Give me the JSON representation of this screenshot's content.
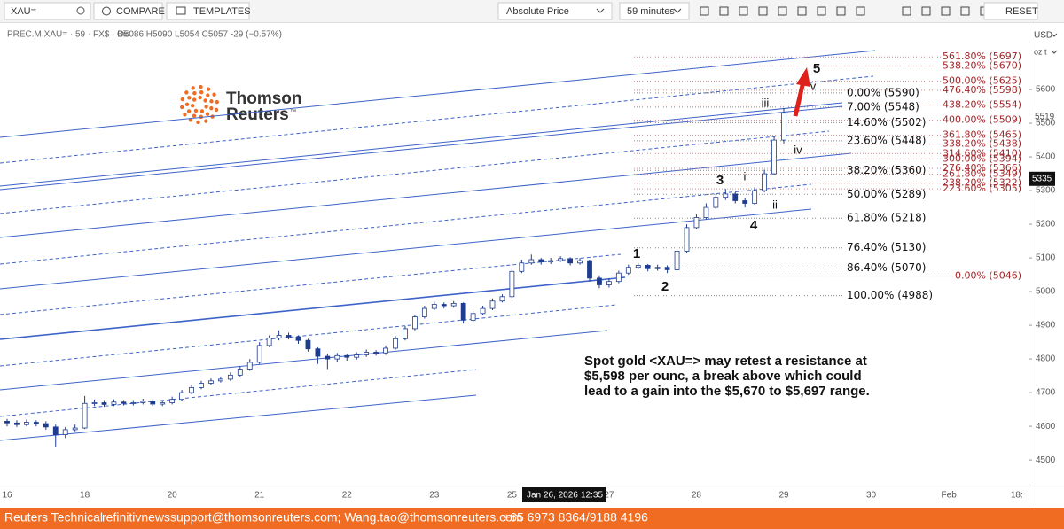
{
  "toolbar": {
    "symbol": "XAU=",
    "compare": "COMPARE",
    "templates": "TEMPLATES",
    "price_mode": "Absolute Price",
    "interval": "59 minutes",
    "reset": "RESET"
  },
  "legend": {
    "instrument": "PREC.M.XAU= · 59 · FX$ · Bid",
    "ohlc": "O5086 H5090 L5054 C5057 -29 (−0.57%)"
  },
  "logo": {
    "line1": "Thomson",
    "line2": "Reuters",
    "mark": "™"
  },
  "axis_units": {
    "currency": "USD",
    "unit": "oz t"
  },
  "footer": {
    "team": "Reuters Technical",
    "emails": "refinitivnewssupport@thomsonreuters.com; Wang.tao@thomsonreuters.com",
    "phone": "+65 6973 8364/9188 4196"
  },
  "chart_data": {
    "type": "candlestick",
    "categories": [
      "16",
      null,
      null,
      null,
      null,
      null,
      null,
      null,
      "18",
      null,
      null,
      null,
      null,
      null,
      null,
      null,
      null,
      "20",
      null,
      null,
      null,
      null,
      null,
      null,
      null,
      null,
      "21",
      null,
      null,
      null,
      null,
      null,
      null,
      null,
      null,
      "22",
      null,
      null,
      null,
      null,
      null,
      null,
      null,
      null,
      "23",
      null,
      null,
      null,
      null,
      null,
      null,
      null,
      "25",
      null,
      null,
      null,
      null,
      null,
      null,
      null,
      null,
      null,
      "27",
      null,
      null,
      null,
      null,
      null,
      null,
      null,
      null,
      "28",
      null,
      null,
      null,
      null,
      null,
      null,
      null,
      null,
      "29",
      null,
      null,
      null,
      null,
      null,
      null,
      null,
      null,
      "30",
      null,
      null,
      null,
      null,
      null,
      null,
      null,
      "Feb",
      null,
      null,
      null,
      null,
      null,
      null,
      "18:"
    ],
    "open": [
      4615,
      4610,
      4605,
      4612,
      4608,
      4598,
      4575,
      4590,
      4595,
      4668,
      4670,
      4665,
      4672,
      4668,
      4670,
      4674,
      4666,
      4670,
      4680,
      4700,
      4715,
      4728,
      4735,
      4740,
      4752,
      4770,
      4790,
      4840,
      4862,
      4870,
      4865,
      4855,
      4830,
      4808,
      4800,
      4810,
      4805,
      4812,
      4820,
      4818,
      4832,
      4860,
      4890,
      4925,
      4950,
      4962,
      4958,
      4965,
      4915,
      4935,
      4950,
      4972,
      4985,
      5060,
      5085,
      5095,
      5088,
      5092,
      5098,
      5085,
      5092,
      5040,
      5020,
      5030,
      5055,
      5072,
      5078,
      5068,
      5072,
      5065,
      5120,
      5190,
      5220,
      5250,
      5280,
      5290,
      5270,
      5262,
      5300,
      5350,
      5450,
      null,
      null,
      null,
      null,
      null,
      null,
      null,
      null,
      null,
      null,
      null,
      null,
      null,
      null,
      null,
      null,
      null,
      null,
      null,
      null,
      null,
      null,
      null,
      null
    ],
    "high": [
      4622,
      4618,
      4620,
      4618,
      4615,
      4605,
      4598,
      4605,
      4690,
      4680,
      4678,
      4680,
      4678,
      4678,
      4682,
      4680,
      4676,
      4688,
      4708,
      4722,
      4735,
      4742,
      4748,
      4760,
      4778,
      4800,
      4850,
      4870,
      4885,
      4878,
      4870,
      4860,
      4835,
      4815,
      4818,
      4815,
      4820,
      4828,
      4826,
      4840,
      4868,
      4898,
      4932,
      4958,
      4970,
      4968,
      4972,
      4968,
      4942,
      4958,
      4980,
      4992,
      5070,
      5095,
      5110,
      5100,
      5100,
      5105,
      5102,
      5100,
      5095,
      5048,
      5040,
      5062,
      5080,
      5085,
      5082,
      5080,
      5078,
      5128,
      5200,
      5232,
      5262,
      5292,
      5305,
      5295,
      5278,
      5310,
      5362,
      5462,
      5545,
      null,
      null,
      null,
      null,
      null,
      null,
      null,
      null,
      null,
      null,
      null,
      null,
      null,
      null,
      null,
      null,
      null,
      null,
      null,
      null,
      null,
      null,
      null,
      null
    ],
    "low": [
      4600,
      4598,
      4600,
      4600,
      4590,
      4540,
      4565,
      4585,
      4592,
      4660,
      4658,
      4660,
      4662,
      4662,
      4665,
      4660,
      4660,
      4665,
      4676,
      4695,
      4710,
      4722,
      4730,
      4735,
      4748,
      4765,
      4785,
      4835,
      4855,
      4858,
      4845,
      4822,
      4785,
      4770,
      4792,
      4795,
      4798,
      4806,
      4810,
      4812,
      4828,
      4855,
      4885,
      4920,
      4945,
      4950,
      4952,
      4905,
      4910,
      4930,
      4945,
      4968,
      4980,
      5055,
      5080,
      5080,
      5082,
      5088,
      5078,
      5080,
      5030,
      5010,
      5012,
      5025,
      5050,
      5066,
      5060,
      5062,
      5055,
      5060,
      5115,
      5185,
      5215,
      5245,
      5272,
      5262,
      5250,
      5258,
      5295,
      5345,
      5440,
      null,
      null,
      null,
      null,
      null,
      null,
      null,
      null,
      null,
      null,
      null,
      null,
      null,
      null,
      null,
      null,
      null,
      null,
      null,
      null,
      null,
      null,
      null,
      null
    ],
    "close": [
      4610,
      4605,
      4612,
      4608,
      4598,
      4575,
      4590,
      4595,
      4668,
      4670,
      4665,
      4672,
      4668,
      4670,
      4674,
      4666,
      4670,
      4680,
      4700,
      4715,
      4728,
      4735,
      4740,
      4752,
      4770,
      4790,
      4840,
      4862,
      4870,
      4865,
      4855,
      4830,
      4808,
      4800,
      4810,
      4805,
      4812,
      4820,
      4818,
      4832,
      4860,
      4890,
      4925,
      4950,
      4962,
      4958,
      4965,
      4915,
      4935,
      4950,
      4972,
      4985,
      5060,
      5085,
      5095,
      5088,
      5092,
      5098,
      5085,
      5092,
      5040,
      5020,
      5030,
      5055,
      5072,
      5078,
      5068,
      5072,
      5065,
      5120,
      5190,
      5220,
      5250,
      5280,
      5290,
      5270,
      5262,
      5300,
      5350,
      5450,
      5530,
      null,
      null,
      null,
      null,
      null,
      null,
      null,
      null,
      null,
      null,
      null,
      null,
      null,
      null,
      null,
      null,
      null,
      null,
      null,
      null,
      null,
      null,
      null,
      null
    ],
    "up_color": "#ffffff",
    "down_color": "#1f3d8f",
    "line_color": "#1f3d8f",
    "ylim": [
      4424,
      5787
    ],
    "yticks": [
      4500,
      4600,
      4700,
      4800,
      4900,
      5000,
      5100,
      5200,
      5300,
      5400,
      5500,
      5600
    ],
    "grid": false,
    "last_price": 5519,
    "crosshair_price": 5335,
    "crosshair_date": "Jan 26, 2026",
    "crosshair_time": "12:35",
    "retracement_levels": [
      {
        "value": 5590,
        "label": "0.00% (5590)"
      },
      {
        "value": 5548,
        "label": "7.00% (5548)"
      },
      {
        "value": 5502,
        "label": "14.60% (5502)"
      },
      {
        "value": 5448,
        "label": "23.60% (5448)"
      },
      {
        "value": 5360,
        "label": "38.20% (5360)"
      },
      {
        "value": 5289,
        "label": "50.00% (5289)"
      },
      {
        "value": 5218,
        "label": "61.80% (5218)"
      },
      {
        "value": 5130,
        "label": "76.40% (5130)"
      },
      {
        "value": 5070,
        "label": "86.40% (5070)"
      },
      {
        "value": 4988,
        "label": "100.00% (4988)"
      }
    ],
    "extension_levels": [
      {
        "value": 5697,
        "label": "561.80% (5697)"
      },
      {
        "value": 5670,
        "label": "538.20% (5670)"
      },
      {
        "value": 5625,
        "label": "500.00% (5625)"
      },
      {
        "value": 5598,
        "label": "476.40% (5598)"
      },
      {
        "value": 5554,
        "label": "438.20% (5554)"
      },
      {
        "value": 5509,
        "label": "400.00% (5509)"
      },
      {
        "value": 5465,
        "label": "361.80% (5465)"
      },
      {
        "value": 5438,
        "label": "338.20% (5438)"
      },
      {
        "value": 5410,
        "label": "314.60% (5410)"
      },
      {
        "value": 5394,
        "label": "300.00% (5394)"
      },
      {
        "value": 5366,
        "label": "276.40% (5366)"
      },
      {
        "value": 5349,
        "label": "261.80% (5349)"
      },
      {
        "value": 5322,
        "label": "238.20% (5322)"
      },
      {
        "value": 5305,
        "label": "223.60% (5305)"
      },
      {
        "value": 5046,
        "label": "0.00% (5046)"
      }
    ],
    "wave_labels": [
      "5",
      "v",
      "iii",
      "iv",
      "3",
      "i",
      "ii",
      "4",
      "1",
      "2"
    ],
    "annotation": [
      "Spot gold <XAU=> may retest a resistance at",
      "$5,598 per ounc, a break above which could",
      "lead to a gain into the $5,670 to $5,697 range."
    ]
  }
}
